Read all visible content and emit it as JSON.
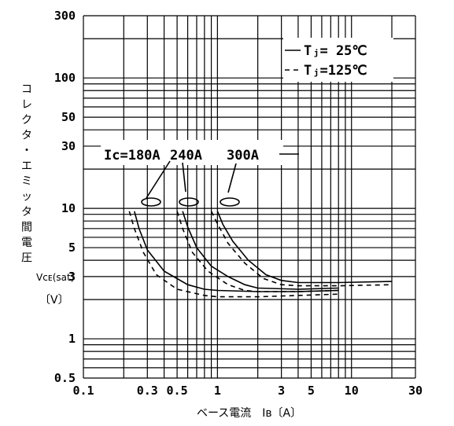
{
  "chart_data": {
    "type": "line",
    "xscale": "log",
    "yscale": "log",
    "xlim": [
      0.1,
      30
    ],
    "ylim": [
      0.5,
      300
    ],
    "grid": true,
    "x_tick_labels": [
      "0.1",
      "0.3",
      "0.5",
      "1",
      "3",
      "5",
      "10",
      "30"
    ],
    "x_tick_values": [
      0.1,
      0.3,
      0.5,
      1,
      3,
      5,
      10,
      30
    ],
    "y_tick_labels": [
      "300",
      "100",
      "50",
      "30",
      "10",
      "5",
      "3",
      "1",
      "0.5"
    ],
    "y_tick_values": [
      300,
      100,
      50,
      30,
      10,
      5,
      3,
      1,
      0.5
    ],
    "xlabel": "ベース電流　Iʙ〔A〕",
    "ylabel_chars": [
      "コ",
      "レ",
      "ク",
      "タ",
      "・",
      "エ",
      "ミ",
      "ッ",
      "タ",
      "間",
      "電",
      "圧"
    ],
    "ylabel_symbol": "Vᴄᴇ(sat)",
    "ylabel_unit": "〔V〕",
    "legend_placement": "top-right",
    "legend": [
      {
        "label": "Tⱼ=  25℃",
        "style": "solid"
      },
      {
        "label": "Tⱼ=125℃",
        "style": "dashed"
      }
    ],
    "annotation_labels": [
      "Ic=180A",
      "240A",
      "300A"
    ],
    "series": [
      {
        "group": "Ic=180A",
        "style": "solid",
        "x": [
          0.24,
          0.26,
          0.3,
          0.4,
          0.6,
          0.8,
          1.0,
          2.0,
          4.0,
          8.0
        ],
        "y": [
          9.5,
          7.0,
          4.8,
          3.3,
          2.6,
          2.4,
          2.35,
          2.3,
          2.3,
          2.35
        ]
      },
      {
        "group": "Ic=180A",
        "style": "dashed",
        "x": [
          0.22,
          0.24,
          0.28,
          0.35,
          0.5,
          0.8,
          1.0,
          2.0,
          4.0,
          8.0
        ],
        "y": [
          9.5,
          7.0,
          4.6,
          3.1,
          2.4,
          2.15,
          2.1,
          2.1,
          2.15,
          2.2
        ]
      },
      {
        "group": "240A",
        "style": "solid",
        "x": [
          0.55,
          0.6,
          0.7,
          0.9,
          1.2,
          1.6,
          2.0,
          4.0,
          8.0
        ],
        "y": [
          9.5,
          7.2,
          5.0,
          3.6,
          3.0,
          2.6,
          2.45,
          2.4,
          2.45
        ]
      },
      {
        "group": "240A",
        "style": "dashed",
        "x": [
          0.5,
          0.55,
          0.65,
          0.85,
          1.2,
          1.6,
          2.0,
          4.0,
          8.0
        ],
        "y": [
          9.5,
          7.0,
          4.6,
          3.3,
          2.6,
          2.35,
          2.3,
          2.3,
          2.35
        ]
      },
      {
        "group": "300A",
        "style": "solid",
        "x": [
          1.0,
          1.1,
          1.3,
          1.7,
          2.3,
          3.0,
          4.0,
          8.0,
          20.0
        ],
        "y": [
          9.5,
          7.5,
          5.6,
          4.0,
          3.1,
          2.8,
          2.7,
          2.7,
          2.75
        ]
      },
      {
        "group": "300A",
        "style": "dashed",
        "x": [
          0.9,
          1.0,
          1.2,
          1.6,
          2.2,
          3.0,
          4.0,
          8.0,
          20.0
        ],
        "y": [
          9.5,
          7.6,
          5.4,
          3.8,
          2.9,
          2.6,
          2.55,
          2.55,
          2.6
        ]
      }
    ]
  }
}
